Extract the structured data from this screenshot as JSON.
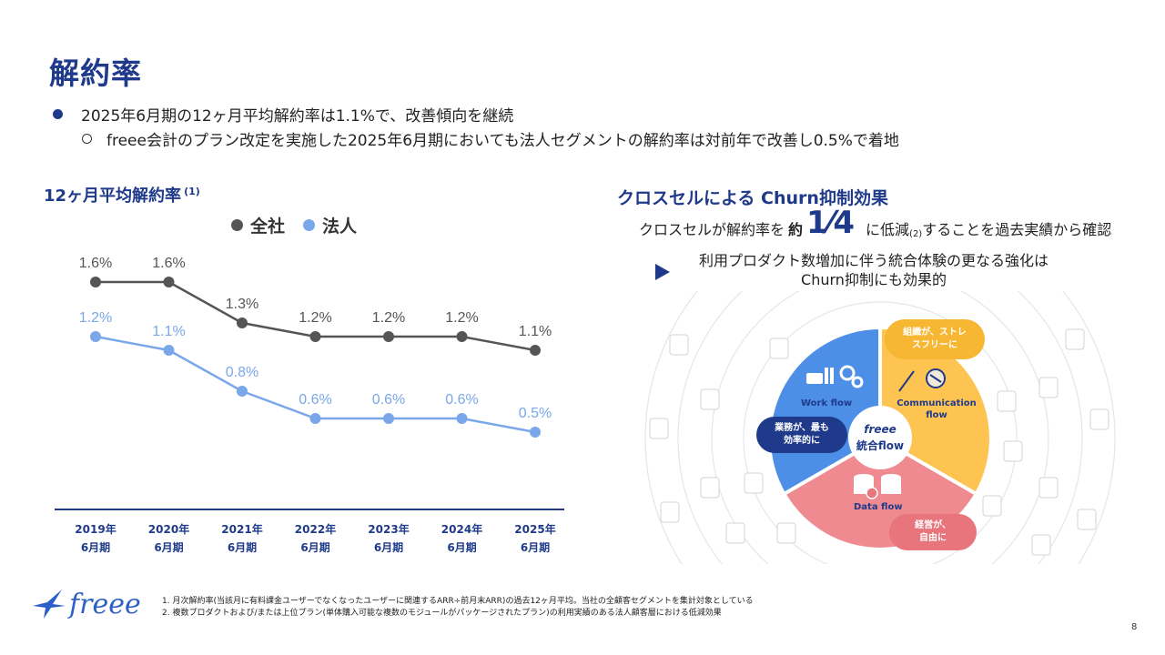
{
  "page": {
    "title": "解約率",
    "bullet1": "2025年6月期の12ヶ月平均解約率は1.1%で、改善傾向を継続",
    "bullet2": "freee会計のプラン改定を実施した2025年6月期においても法人セグメントの解約率は対前年で改善し0.5%で着地",
    "page_number": "8",
    "logo_text": "freee"
  },
  "left_panel": {
    "title": "12ヶ月平均解約率",
    "title_note": "(1)"
  },
  "chart_data": {
    "type": "line",
    "x": [
      "2019年\n6月期",
      "2020年\n6月期",
      "2021年\n6月期",
      "2022年\n6月期",
      "2023年\n6月期",
      "2024年\n6月期",
      "2025年\n6月期"
    ],
    "series": [
      {
        "name": "全社",
        "color": "#555555",
        "values": [
          1.6,
          1.6,
          1.3,
          1.2,
          1.2,
          1.2,
          1.1
        ],
        "labels": [
          "1.6%",
          "1.6%",
          "1.3%",
          "1.2%",
          "1.2%",
          "1.2%",
          "1.1%"
        ]
      },
      {
        "name": "法人",
        "color": "#79a7ea",
        "values": [
          1.2,
          1.1,
          0.8,
          0.6,
          0.6,
          0.6,
          0.5
        ],
        "labels": [
          "1.2%",
          "1.1%",
          "0.8%",
          "0.6%",
          "0.6%",
          "0.6%",
          "0.5%"
        ]
      }
    ],
    "ylim": [
      0,
      2.0
    ],
    "grid": false,
    "legend_position": "top"
  },
  "right_panel": {
    "title": "クロスセルによる Churn抑制効果",
    "line_prefix": "クロスセルが解約率を",
    "line_approx": "約",
    "line_fraction": "1⁄4",
    "line_mid": "に低減",
    "line_note": "(2)",
    "line_suffix": "することを過去実績から確認",
    "synergy_line1": "利用プロダクト数増加に伴う統合体験の更なる強化は",
    "synergy_line2": "Churn抑制にも効果的",
    "segments": {
      "work_flow": "Work flow",
      "communication_flow": "Communication flow",
      "data_flow": "Data flow"
    },
    "hub_brand": "freee",
    "hub_label": "統合flow",
    "pills": {
      "yellow": "組織が、ストレスフリーに",
      "blue": "業務が、最も効率的に",
      "red": "経営が、自由に"
    }
  },
  "footnotes": [
    "1.  月次解約率(当該月に有料課金ユーザーでなくなったユーザーに関連するARR÷前月末ARR)の過去12ヶ月平均。当社の全顧客セグメントを集計対象としている",
    "2.  複数プロダクトおよび/または上位プラン(単体購入可能な複数のモジュールがパッケージされたプラン)の利用実績のある法人顧客層における低減効果"
  ]
}
